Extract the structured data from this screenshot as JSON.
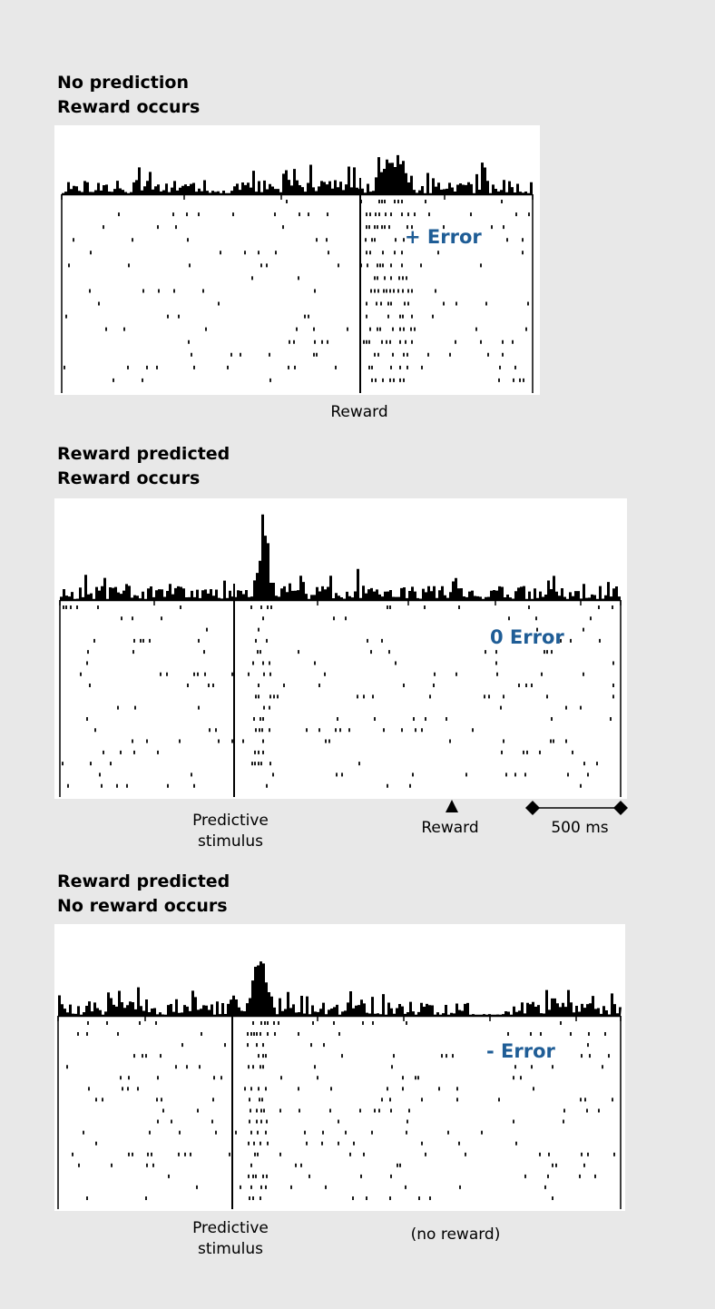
{
  "panels": [
    {
      "heading_line1": "No prediction",
      "heading_line2": "Reward occurs",
      "error_label": "+ Error",
      "bottom_label": "Reward"
    },
    {
      "heading_line1": "Reward predicted",
      "heading_line2": "Reward occurs",
      "error_label": "0 Error",
      "stimulus_label_line1": "Predictive",
      "stimulus_label_line2": "stimulus",
      "reward_label": "Reward",
      "scale_label": "500 ms"
    },
    {
      "heading_line1": "Reward predicted",
      "heading_line2": "No reward occurs",
      "error_label": "- Error",
      "stimulus_label_line1": "Predictive",
      "stimulus_label_line2": "stimulus",
      "no_reward_label": "(no reward)"
    }
  ],
  "colors": {
    "background": "#e8e8e8",
    "panel": "#ffffff",
    "error_text": "#1f5d96",
    "ink": "#000000"
  }
}
